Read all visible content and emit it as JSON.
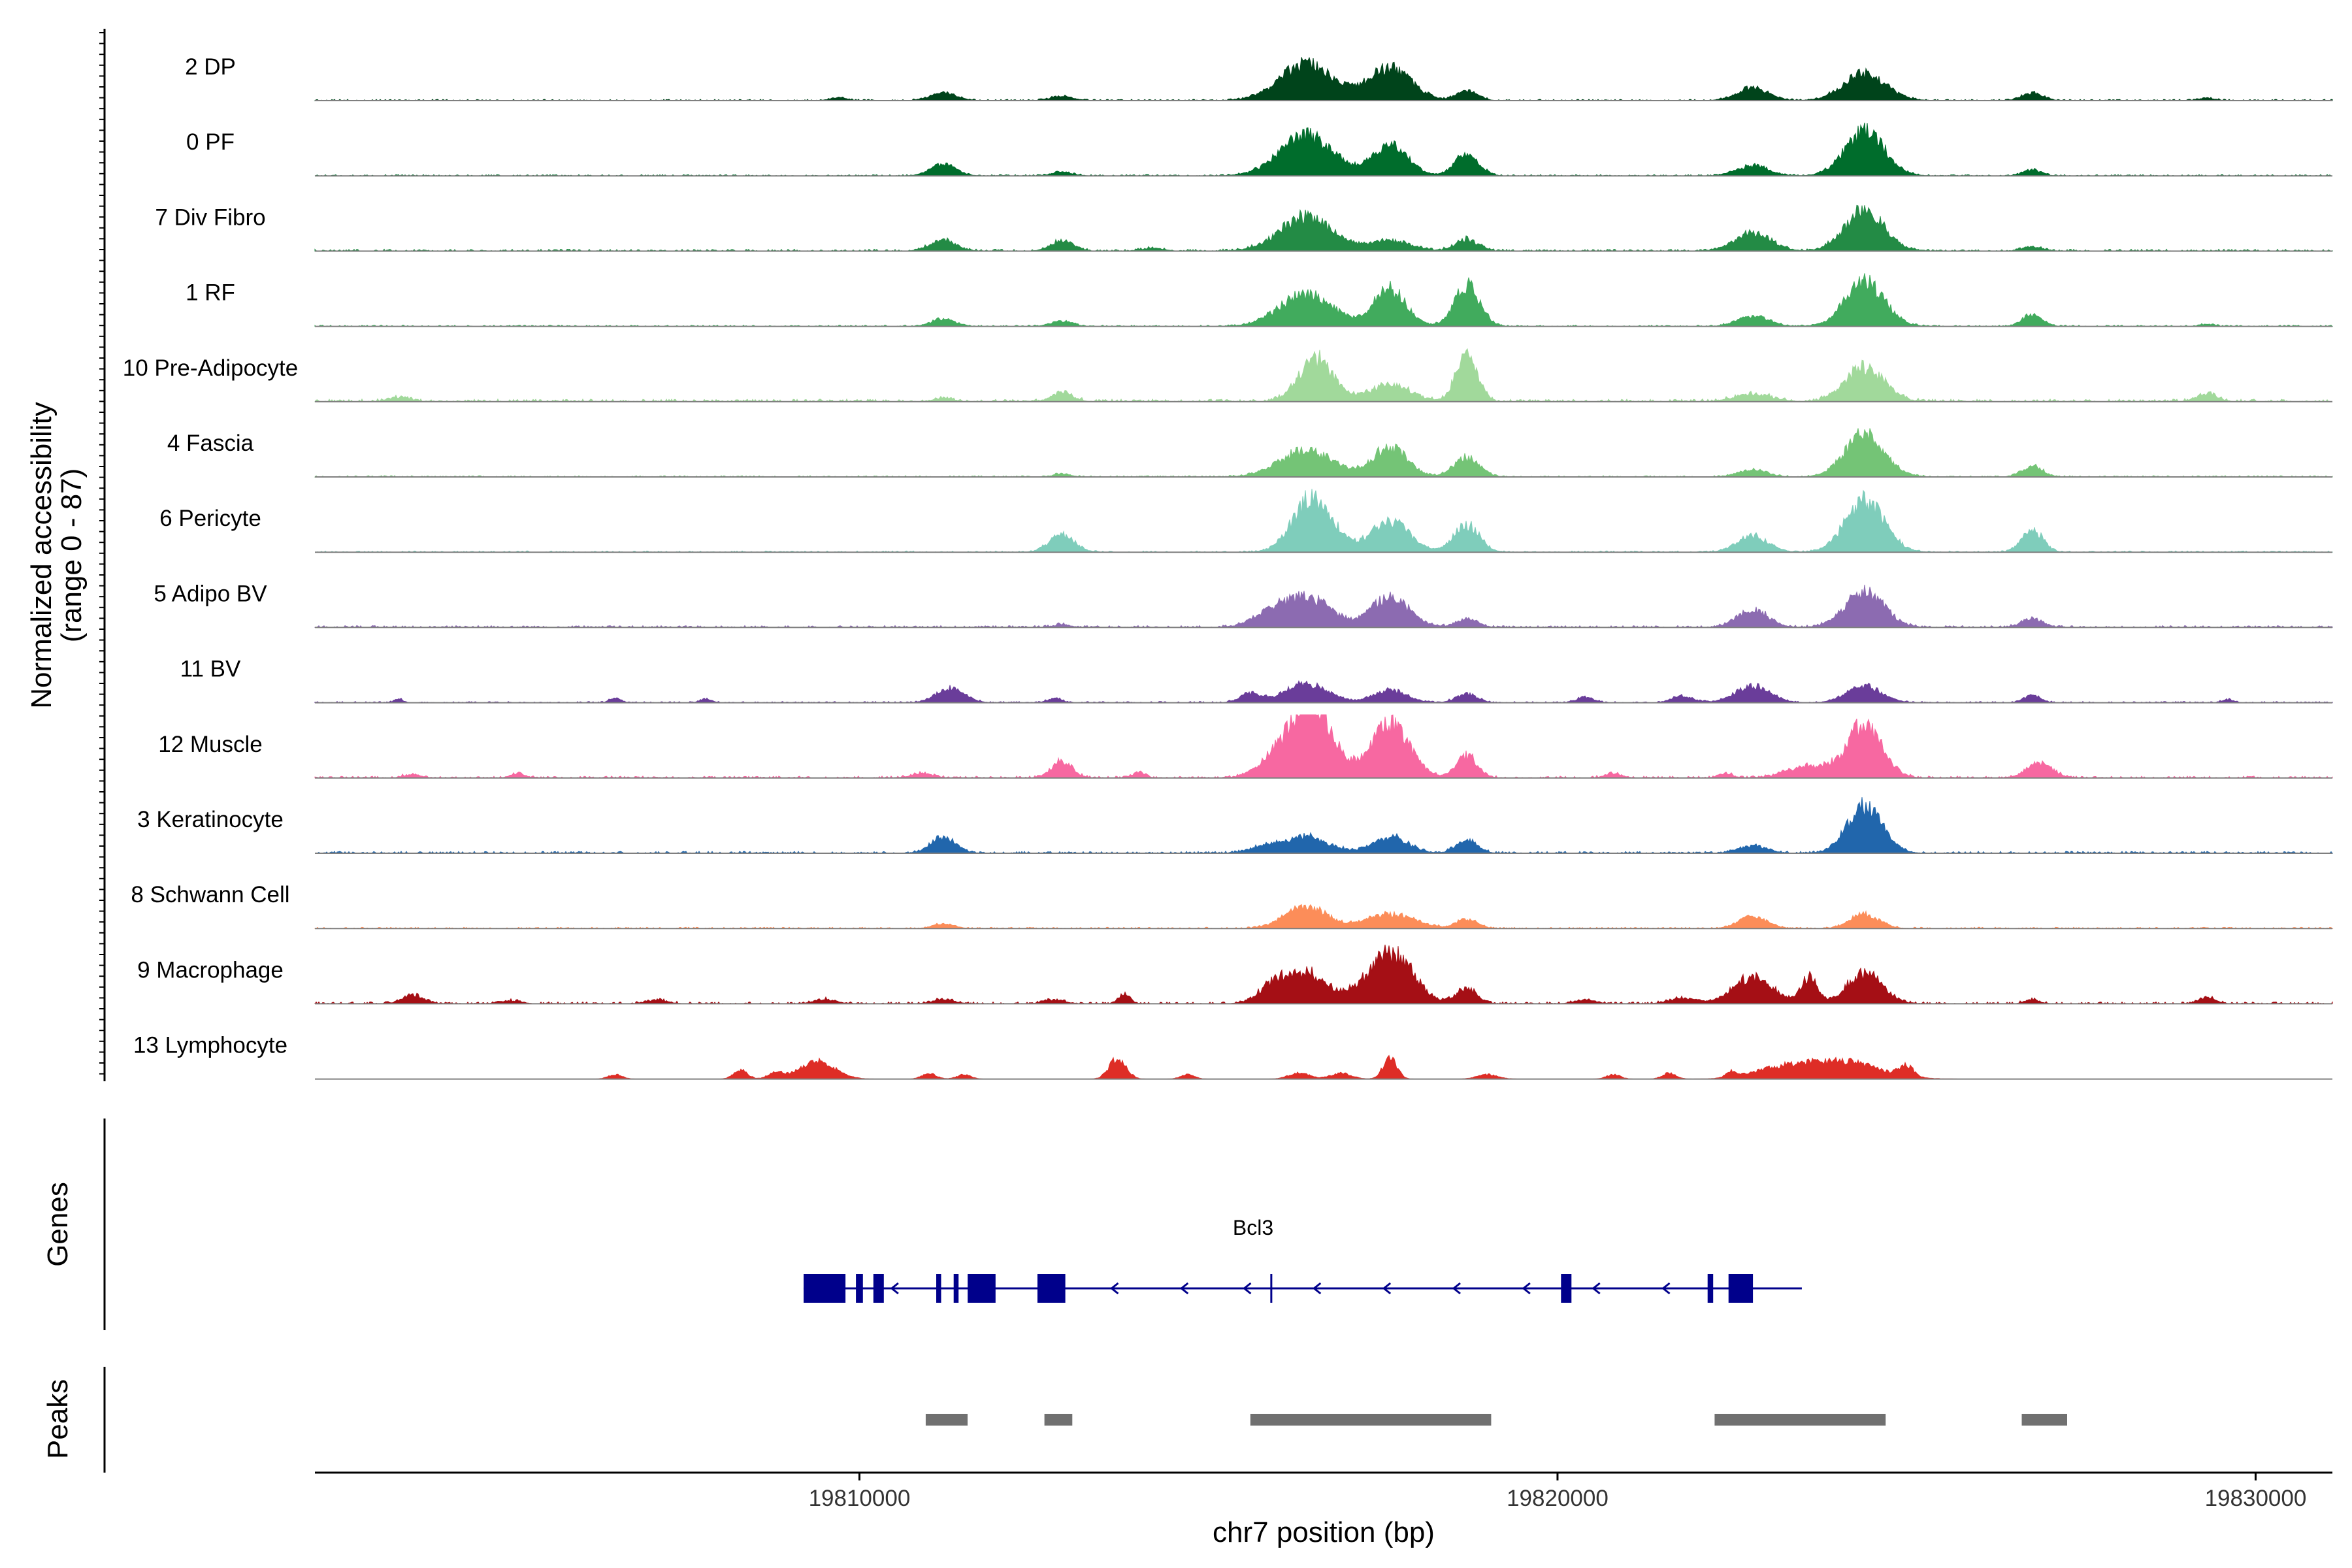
{
  "chart_data": {
    "type": "area",
    "ylabel_line1": "Normalized accessibility",
    "ylabel_line2": "(range 0 - 87)",
    "xlabel": "chr7 position (bp)",
    "xlim": [
      19802200,
      19831100
    ],
    "ylim": [
      0,
      87
    ],
    "x_ticks": [
      {
        "value": 19810000,
        "label": "19810000"
      },
      {
        "value": 19820000,
        "label": "19820000"
      },
      {
        "value": 19830000,
        "label": "19830000"
      }
    ],
    "track_labels": {
      "genes": "Genes",
      "peaks": "Peaks"
    },
    "series": [
      {
        "name": "2 DP",
        "color": "#00441b",
        "scale": 0.55,
        "bg": 0.02,
        "peaks": [
          [
            19811200,
            180,
            11
          ],
          [
            19812900,
            160,
            6
          ],
          [
            19816400,
            380,
            50
          ],
          [
            19817600,
            300,
            45
          ],
          [
            19818700,
            150,
            14
          ],
          [
            19822800,
            220,
            18
          ],
          [
            19824400,
            300,
            37
          ],
          [
            19826800,
            150,
            10
          ],
          [
            19809700,
            120,
            4
          ],
          [
            19829300,
            120,
            3
          ]
        ]
      },
      {
        "name": "0 PF",
        "color": "#006d2c",
        "scale": 0.55,
        "bg": 0.02,
        "peaks": [
          [
            19811200,
            180,
            16
          ],
          [
            19812900,
            150,
            5
          ],
          [
            19816400,
            380,
            56
          ],
          [
            19817600,
            250,
            42
          ],
          [
            19818700,
            170,
            30
          ],
          [
            19822800,
            220,
            14
          ],
          [
            19824400,
            280,
            60
          ],
          [
            19826800,
            130,
            8
          ]
        ]
      },
      {
        "name": "7 Div Fibro",
        "color": "#238b45",
        "scale": 0.55,
        "bg": 0.03,
        "peaks": [
          [
            19811200,
            180,
            15
          ],
          [
            19812900,
            160,
            14
          ],
          [
            19816400,
            380,
            46
          ],
          [
            19817600,
            300,
            14
          ],
          [
            19818700,
            160,
            16
          ],
          [
            19822800,
            260,
            24
          ],
          [
            19824400,
            280,
            56
          ],
          [
            19826800,
            140,
            6
          ],
          [
            19814200,
            150,
            4
          ]
        ]
      },
      {
        "name": "1 RF",
        "color": "#41ab5d",
        "scale": 0.55,
        "bg": 0.02,
        "peaks": [
          [
            19811200,
            160,
            10
          ],
          [
            19812900,
            150,
            7
          ],
          [
            19816400,
            380,
            44
          ],
          [
            19817600,
            230,
            50
          ],
          [
            19818700,
            180,
            56
          ],
          [
            19822800,
            220,
            14
          ],
          [
            19824400,
            280,
            60
          ],
          [
            19826800,
            140,
            16
          ],
          [
            19829300,
            100,
            3
          ]
        ]
      },
      {
        "name": "10 Pre-Adipocyte",
        "color": "#a1d99b",
        "scale": 0.55,
        "bg": 0.04,
        "peaks": [
          [
            19816550,
            250,
            58
          ],
          [
            19817600,
            300,
            22
          ],
          [
            19818700,
            150,
            66
          ],
          [
            19824400,
            280,
            46
          ],
          [
            19812900,
            150,
            12
          ],
          [
            19829300,
            150,
            10
          ],
          [
            19803400,
            150,
            6
          ],
          [
            19811200,
            120,
            5
          ],
          [
            19822800,
            260,
            10
          ]
        ]
      },
      {
        "name": "4 Fascia",
        "color": "#74c476",
        "scale": 0.55,
        "bg": 0.02,
        "peaks": [
          [
            19816400,
            380,
            36
          ],
          [
            19817600,
            250,
            40
          ],
          [
            19818700,
            180,
            26
          ],
          [
            19824400,
            280,
            58
          ],
          [
            19822800,
            200,
            10
          ],
          [
            19826800,
            150,
            14
          ],
          [
            19812900,
            120,
            4
          ]
        ]
      },
      {
        "name": "6 Pericyte",
        "color": "#7fcdbb",
        "scale": 0.55,
        "bg": 0.02,
        "peaks": [
          [
            19816500,
            280,
            75
          ],
          [
            19817600,
            280,
            42
          ],
          [
            19818700,
            180,
            38
          ],
          [
            19824400,
            280,
            70
          ],
          [
            19812900,
            180,
            24
          ],
          [
            19822800,
            220,
            22
          ],
          [
            19826800,
            150,
            30
          ]
        ]
      },
      {
        "name": "5 Adipo BV",
        "color": "#8c6bb1",
        "scale": 0.55,
        "bg": 0.03,
        "peaks": [
          [
            19816000,
            300,
            24
          ],
          [
            19816500,
            300,
            34
          ],
          [
            19817600,
            280,
            40
          ],
          [
            19818700,
            150,
            12
          ],
          [
            19822800,
            220,
            24
          ],
          [
            19824400,
            280,
            48
          ],
          [
            19826800,
            150,
            12
          ],
          [
            19812900,
            120,
            4
          ]
        ]
      },
      {
        "name": "11 BV",
        "color": "#6a3d9a",
        "scale": 0.55,
        "bg": 0.02,
        "peaks": [
          [
            19811300,
            200,
            20
          ],
          [
            19816400,
            300,
            26
          ],
          [
            19815600,
            150,
            12
          ],
          [
            19817600,
            250,
            16
          ],
          [
            19818700,
            150,
            12
          ],
          [
            19822800,
            250,
            22
          ],
          [
            19824400,
            250,
            22
          ],
          [
            19826800,
            120,
            10
          ],
          [
            19806500,
            80,
            6
          ],
          [
            19807800,
            80,
            5
          ],
          [
            19812800,
            100,
            6
          ],
          [
            19820400,
            120,
            8
          ],
          [
            19821800,
            150,
            9
          ],
          [
            19829600,
            80,
            4
          ],
          [
            19803400,
            60,
            5
          ]
        ]
      },
      {
        "name": "12 Muscle",
        "color": "#f768a1",
        "scale": 0.55,
        "bg": 0.03,
        "peaks": [
          [
            19816500,
            280,
            96
          ],
          [
            19816000,
            260,
            30
          ],
          [
            19817600,
            280,
            72
          ],
          [
            19818700,
            150,
            30
          ],
          [
            19824400,
            250,
            74
          ],
          [
            19823600,
            300,
            16
          ],
          [
            19812900,
            150,
            22
          ],
          [
            19826900,
            180,
            20
          ],
          [
            19803600,
            120,
            5
          ],
          [
            19805100,
            100,
            6
          ],
          [
            19810900,
            150,
            6
          ],
          [
            19814000,
            80,
            8
          ],
          [
            19820800,
            120,
            6
          ],
          [
            19822400,
            100,
            6
          ]
        ]
      },
      {
        "name": "3 Keratinocyte",
        "color": "#2166ac",
        "scale": 0.55,
        "bg": 0.03,
        "peaks": [
          [
            19811200,
            180,
            20
          ],
          [
            19816400,
            320,
            22
          ],
          [
            19817600,
            250,
            22
          ],
          [
            19818700,
            150,
            18
          ],
          [
            19824400,
            250,
            64
          ],
          [
            19822800,
            200,
            10
          ],
          [
            19815800,
            200,
            8
          ]
        ]
      },
      {
        "name": "8 Schwann Cell",
        "color": "#fc8d59",
        "scale": 0.55,
        "bg": 0.02,
        "peaks": [
          [
            19816400,
            300,
            30
          ],
          [
            19817600,
            350,
            20
          ],
          [
            19818700,
            150,
            12
          ],
          [
            19822800,
            200,
            16
          ],
          [
            19824400,
            200,
            20
          ],
          [
            19811200,
            150,
            6
          ]
        ]
      },
      {
        "name": "9 Macrophage",
        "color": "#a50f15",
        "scale": 0.55,
        "bg": 0.03,
        "peaks": [
          [
            19816400,
            320,
            42
          ],
          [
            19815900,
            200,
            18
          ],
          [
            19817600,
            320,
            70
          ],
          [
            19818700,
            150,
            20
          ],
          [
            19822800,
            280,
            36
          ],
          [
            19823600,
            120,
            34
          ],
          [
            19824400,
            250,
            42
          ],
          [
            19803600,
            150,
            12
          ],
          [
            19813800,
            80,
            14
          ],
          [
            19829300,
            120,
            8
          ],
          [
            19805000,
            150,
            4
          ],
          [
            19807100,
            150,
            5
          ],
          [
            19809500,
            150,
            6
          ],
          [
            19811200,
            150,
            6
          ],
          [
            19812800,
            150,
            5
          ],
          [
            19820400,
            150,
            5
          ],
          [
            19821800,
            200,
            7
          ],
          [
            19826800,
            100,
            6
          ]
        ]
      },
      {
        "name": "13 Lymphocyte",
        "color": "#de2d26",
        "scale": 0.55,
        "bg": 0,
        "peaks": [
          [
            19809400,
            250,
            24
          ],
          [
            19808800,
            100,
            10
          ],
          [
            19813700,
            120,
            28
          ],
          [
            19817600,
            100,
            28
          ],
          [
            19824100,
            500,
            24
          ],
          [
            19823200,
            400,
            14
          ],
          [
            19825000,
            100,
            14
          ],
          [
            19806500,
            100,
            6
          ],
          [
            19808300,
            100,
            12
          ],
          [
            19811000,
            100,
            8
          ],
          [
            19811500,
            100,
            6
          ],
          [
            19814700,
            100,
            6
          ],
          [
            19816300,
            150,
            8
          ],
          [
            19816900,
            150,
            8
          ],
          [
            19819000,
            150,
            6
          ],
          [
            19820800,
            100,
            6
          ],
          [
            19821600,
            100,
            8
          ],
          [
            19822500,
            80,
            8
          ]
        ]
      }
    ],
    "gene": {
      "name": "Bcl3",
      "start": 19809200,
      "end": 19823500,
      "tss": 19815900,
      "strand": "-",
      "exons": [
        [
          19809200,
          19809800
        ],
        [
          19809950,
          19810050
        ],
        [
          19810200,
          19810350
        ],
        [
          19811100,
          19811170
        ],
        [
          19811350,
          19811420
        ],
        [
          19811550,
          19811950
        ],
        [
          19812550,
          19812950
        ],
        [
          19820050,
          19820200
        ],
        [
          19822150,
          19822230
        ],
        [
          19822450,
          19822800
        ]
      ],
      "arrows": [
        19810500,
        19813650,
        19814650,
        19815550,
        19816550,
        19817550,
        19818550,
        19819550,
        19820550,
        19821550
      ]
    },
    "peak_regions": [
      [
        19810950,
        19811550
      ],
      [
        19812650,
        19813050
      ],
      [
        19815600,
        19819050
      ],
      [
        19822250,
        19824700
      ],
      [
        19826650,
        19827300
      ]
    ]
  }
}
